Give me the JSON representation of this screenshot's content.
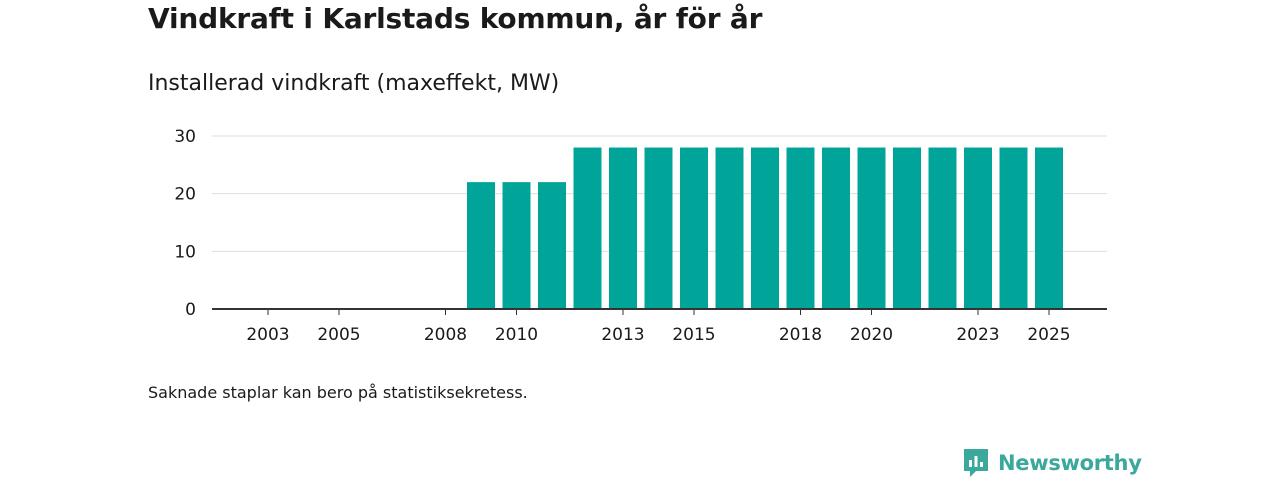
{
  "title": "Vindkraft i Karlstads kommun, år för år",
  "subtitle": "Installerad vindkraft (maxeffekt, MW)",
  "footnote": "Saknade staplar kan bero på statistiksekretess.",
  "brand": {
    "name": "Newsworthy",
    "icon": "newsworthy-logo-icon"
  },
  "colors": {
    "bar": "#00a499",
    "grid": "#dddddd",
    "axis": "#333333",
    "brand": "#3aa89a"
  },
  "chart_data": {
    "type": "bar",
    "title": "Installerad vindkraft (maxeffekt, MW)",
    "xlabel": "",
    "ylabel": "",
    "ylim": [
      0,
      30
    ],
    "yticks": [
      0,
      10,
      20,
      30
    ],
    "grid": true,
    "categories": [
      2003,
      2004,
      2005,
      2006,
      2007,
      2008,
      2009,
      2010,
      2011,
      2012,
      2013,
      2014,
      2015,
      2016,
      2017,
      2018,
      2019,
      2020,
      2021,
      2022,
      2023,
      2024,
      2025
    ],
    "values": [
      0,
      0,
      0,
      0,
      0,
      0,
      22,
      22,
      22,
      28,
      28,
      28,
      28,
      28,
      28,
      28,
      28,
      28,
      28,
      28,
      28,
      28,
      28
    ],
    "xtick_labels": [
      "2003",
      "2005",
      "2008",
      "2010",
      "2013",
      "2015",
      "2018",
      "2020",
      "2023",
      "2025"
    ]
  }
}
